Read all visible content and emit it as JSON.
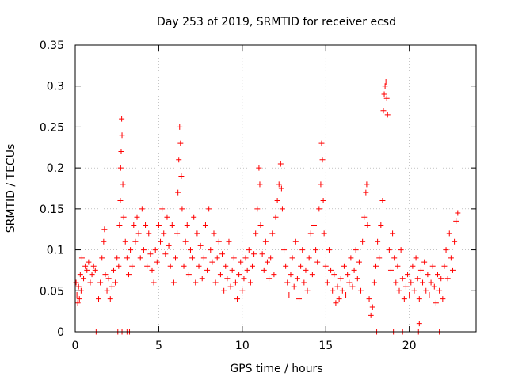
{
  "colors": {
    "series": "#ff0000",
    "grid": "#a0a0a0",
    "axis": "#000000"
  },
  "chart_data": {
    "type": "scatter",
    "title": "Day 253 of 2019, SRMTID for receiver ecsd",
    "xlabel": "GPS time / hours",
    "ylabel": "SRMTID / TECUs",
    "xlim": [
      0,
      24
    ],
    "ylim": [
      0,
      0.35
    ],
    "x_ticks": [
      0,
      5,
      10,
      15,
      20
    ],
    "x_tick_labels": [
      "0",
      "5",
      "10",
      "15",
      "20"
    ],
    "y_ticks": [
      0,
      0.05,
      0.1,
      0.15,
      0.2,
      0.25,
      0.3,
      0.35
    ],
    "y_tick_labels": [
      "0",
      "0.05",
      "0.1",
      "0.15",
      "0.2",
      "0.25",
      "0.3",
      "0.35"
    ],
    "grid": true,
    "marker": "+",
    "series": [
      {
        "name": "SRMTID",
        "points": [
          [
            0.05,
            0.06
          ],
          [
            0.1,
            0.045
          ],
          [
            0.15,
            0.035
          ],
          [
            0.2,
            0.055
          ],
          [
            0.25,
            0.04
          ],
          [
            0.3,
            0.07
          ],
          [
            0.35,
            0.05
          ],
          [
            0.4,
            0.09
          ],
          [
            0.5,
            0.065
          ],
          [
            0.6,
            0.08
          ],
          [
            0.7,
            0.075
          ],
          [
            0.8,
            0.085
          ],
          [
            0.9,
            0.06
          ],
          [
            1.0,
            0.07
          ],
          [
            1.1,
            0.08
          ],
          [
            1.2,
            0.075
          ],
          [
            1.4,
            0.04
          ],
          [
            1.5,
            0.06
          ],
          [
            1.6,
            0.09
          ],
          [
            1.7,
            0.11
          ],
          [
            1.75,
            0.125
          ],
          [
            1.8,
            0.07
          ],
          [
            1.9,
            0.05
          ],
          [
            2.0,
            0.065
          ],
          [
            2.1,
            0.04
          ],
          [
            2.2,
            0.055
          ],
          [
            2.3,
            0.075
          ],
          [
            2.4,
            0.06
          ],
          [
            2.5,
            0.09
          ],
          [
            2.6,
            0.08
          ],
          [
            2.65,
            0.13
          ],
          [
            2.7,
            0.16
          ],
          [
            2.72,
            0.2
          ],
          [
            2.75,
            0.22
          ],
          [
            2.78,
            0.26
          ],
          [
            2.8,
            0.24
          ],
          [
            2.85,
            0.18
          ],
          [
            2.9,
            0.14
          ],
          [
            3.0,
            0.11
          ],
          [
            3.1,
            0.09
          ],
          [
            3.2,
            0.07
          ],
          [
            3.3,
            0.1
          ],
          [
            3.4,
            0.08
          ],
          [
            3.5,
            0.13
          ],
          [
            3.6,
            0.11
          ],
          [
            3.7,
            0.14
          ],
          [
            3.8,
            0.12
          ],
          [
            3.9,
            0.09
          ],
          [
            4.0,
            0.15
          ],
          [
            4.1,
            0.1
          ],
          [
            4.2,
            0.13
          ],
          [
            4.3,
            0.08
          ],
          [
            4.4,
            0.12
          ],
          [
            4.5,
            0.095
          ],
          [
            4.6,
            0.075
          ],
          [
            4.7,
            0.06
          ],
          [
            4.8,
            0.1
          ],
          [
            4.9,
            0.085
          ],
          [
            5.0,
            0.13
          ],
          [
            5.1,
            0.11
          ],
          [
            5.2,
            0.15
          ],
          [
            5.3,
            0.12
          ],
          [
            5.4,
            0.095
          ],
          [
            5.5,
            0.14
          ],
          [
            5.6,
            0.105
          ],
          [
            5.7,
            0.08
          ],
          [
            5.8,
            0.13
          ],
          [
            5.9,
            0.06
          ],
          [
            6.0,
            0.09
          ],
          [
            6.1,
            0.12
          ],
          [
            6.15,
            0.17
          ],
          [
            6.2,
            0.21
          ],
          [
            6.25,
            0.25
          ],
          [
            6.3,
            0.23
          ],
          [
            6.35,
            0.19
          ],
          [
            6.4,
            0.15
          ],
          [
            6.5,
            0.08
          ],
          [
            6.6,
            0.11
          ],
          [
            6.7,
            0.13
          ],
          [
            6.8,
            0.07
          ],
          [
            6.9,
            0.1
          ],
          [
            7.0,
            0.09
          ],
          [
            7.1,
            0.14
          ],
          [
            7.2,
            0.06
          ],
          [
            7.3,
            0.12
          ],
          [
            7.4,
            0.08
          ],
          [
            7.5,
            0.105
          ],
          [
            7.6,
            0.065
          ],
          [
            7.7,
            0.09
          ],
          [
            7.8,
            0.13
          ],
          [
            7.9,
            0.075
          ],
          [
            8.0,
            0.15
          ],
          [
            8.1,
            0.1
          ],
          [
            8.2,
            0.085
          ],
          [
            8.3,
            0.12
          ],
          [
            8.4,
            0.06
          ],
          [
            8.5,
            0.09
          ],
          [
            8.6,
            0.11
          ],
          [
            8.7,
            0.07
          ],
          [
            8.8,
            0.095
          ],
          [
            8.9,
            0.05
          ],
          [
            9.0,
            0.08
          ],
          [
            9.1,
            0.065
          ],
          [
            9.2,
            0.11
          ],
          [
            9.3,
            0.055
          ],
          [
            9.4,
            0.075
          ],
          [
            9.5,
            0.09
          ],
          [
            9.6,
            0.06
          ],
          [
            9.7,
            0.04
          ],
          [
            9.8,
            0.07
          ],
          [
            9.9,
            0.085
          ],
          [
            10.0,
            0.05
          ],
          [
            10.1,
            0.065
          ],
          [
            10.2,
            0.09
          ],
          [
            10.3,
            0.075
          ],
          [
            10.4,
            0.1
          ],
          [
            10.5,
            0.06
          ],
          [
            10.6,
            0.08
          ],
          [
            10.7,
            0.095
          ],
          [
            10.8,
            0.12
          ],
          [
            10.9,
            0.15
          ],
          [
            11.0,
            0.2
          ],
          [
            11.05,
            0.18
          ],
          [
            11.1,
            0.13
          ],
          [
            11.2,
            0.095
          ],
          [
            11.3,
            0.075
          ],
          [
            11.4,
            0.11
          ],
          [
            11.5,
            0.085
          ],
          [
            11.6,
            0.065
          ],
          [
            11.7,
            0.09
          ],
          [
            11.8,
            0.12
          ],
          [
            11.9,
            0.07
          ],
          [
            12.0,
            0.14
          ],
          [
            12.1,
            0.16
          ],
          [
            12.2,
            0.18
          ],
          [
            12.3,
            0.205
          ],
          [
            12.35,
            0.175
          ],
          [
            12.4,
            0.15
          ],
          [
            12.5,
            0.1
          ],
          [
            12.6,
            0.08
          ],
          [
            12.7,
            0.06
          ],
          [
            12.8,
            0.045
          ],
          [
            12.9,
            0.07
          ],
          [
            13.0,
            0.09
          ],
          [
            13.1,
            0.055
          ],
          [
            13.2,
            0.11
          ],
          [
            13.3,
            0.065
          ],
          [
            13.4,
            0.04
          ],
          [
            13.5,
            0.08
          ],
          [
            13.6,
            0.1
          ],
          [
            13.7,
            0.06
          ],
          [
            13.8,
            0.075
          ],
          [
            13.9,
            0.05
          ],
          [
            14.0,
            0.09
          ],
          [
            14.1,
            0.12
          ],
          [
            14.2,
            0.07
          ],
          [
            14.3,
            0.13
          ],
          [
            14.4,
            0.1
          ],
          [
            14.5,
            0.085
          ],
          [
            14.6,
            0.15
          ],
          [
            14.7,
            0.18
          ],
          [
            14.75,
            0.23
          ],
          [
            14.8,
            0.21
          ],
          [
            14.85,
            0.16
          ],
          [
            14.9,
            0.12
          ],
          [
            15.0,
            0.08
          ],
          [
            15.1,
            0.06
          ],
          [
            15.2,
            0.1
          ],
          [
            15.3,
            0.075
          ],
          [
            15.4,
            0.05
          ],
          [
            15.5,
            0.07
          ],
          [
            15.6,
            0.035
          ],
          [
            15.7,
            0.055
          ],
          [
            15.8,
            0.04
          ],
          [
            15.9,
            0.065
          ],
          [
            16.0,
            0.05
          ],
          [
            16.1,
            0.08
          ],
          [
            16.2,
            0.045
          ],
          [
            16.3,
            0.07
          ],
          [
            16.4,
            0.06
          ],
          [
            16.5,
            0.09
          ],
          [
            16.6,
            0.055
          ],
          [
            16.7,
            0.075
          ],
          [
            16.8,
            0.1
          ],
          [
            16.9,
            0.065
          ],
          [
            17.0,
            0.085
          ],
          [
            17.1,
            0.05
          ],
          [
            17.2,
            0.11
          ],
          [
            17.3,
            0.14
          ],
          [
            17.4,
            0.17
          ],
          [
            17.45,
            0.18
          ],
          [
            17.5,
            0.13
          ],
          [
            17.6,
            0.04
          ],
          [
            17.7,
            0.02
          ],
          [
            17.8,
            0.03
          ],
          [
            17.9,
            0.06
          ],
          [
            18.0,
            0.08
          ],
          [
            18.1,
            0.11
          ],
          [
            18.2,
            0.09
          ],
          [
            18.3,
            0.13
          ],
          [
            18.4,
            0.16
          ],
          [
            18.45,
            0.27
          ],
          [
            18.5,
            0.29
          ],
          [
            18.55,
            0.3
          ],
          [
            18.6,
            0.305
          ],
          [
            18.65,
            0.285
          ],
          [
            18.7,
            0.265
          ],
          [
            18.8,
            0.1
          ],
          [
            18.9,
            0.075
          ],
          [
            19.0,
            0.12
          ],
          [
            19.1,
            0.09
          ],
          [
            19.2,
            0.06
          ],
          [
            19.3,
            0.08
          ],
          [
            19.4,
            0.05
          ],
          [
            19.5,
            0.1
          ],
          [
            19.6,
            0.065
          ],
          [
            19.7,
            0.04
          ],
          [
            19.8,
            0.055
          ],
          [
            19.9,
            0.07
          ],
          [
            20.0,
            0.045
          ],
          [
            20.1,
            0.06
          ],
          [
            20.2,
            0.08
          ],
          [
            20.3,
            0.05
          ],
          [
            20.4,
            0.09
          ],
          [
            20.5,
            0.065
          ],
          [
            20.6,
            0.04
          ],
          [
            20.7,
            0.075
          ],
          [
            20.8,
            0.06
          ],
          [
            20.9,
            0.085
          ],
          [
            21.0,
            0.05
          ],
          [
            21.1,
            0.07
          ],
          [
            21.2,
            0.045
          ],
          [
            21.3,
            0.06
          ],
          [
            21.4,
            0.08
          ],
          [
            21.5,
            0.055
          ],
          [
            21.6,
            0.035
          ],
          [
            21.7,
            0.07
          ],
          [
            21.8,
            0.05
          ],
          [
            21.9,
            0.065
          ],
          [
            22.0,
            0.04
          ],
          [
            22.1,
            0.08
          ],
          [
            22.2,
            0.1
          ],
          [
            22.3,
            0.065
          ],
          [
            22.4,
            0.12
          ],
          [
            22.5,
            0.09
          ],
          [
            22.6,
            0.075
          ],
          [
            22.7,
            0.11
          ],
          [
            22.8,
            0.135
          ],
          [
            22.9,
            0.145
          ],
          [
            1.25,
            0.0
          ],
          [
            2.55,
            0.0
          ],
          [
            2.8,
            0.0
          ],
          [
            3.1,
            0.0
          ],
          [
            3.25,
            0.0
          ],
          [
            18.05,
            0.0
          ],
          [
            19.05,
            0.0
          ],
          [
            19.6,
            0.0
          ],
          [
            20.55,
            0.0
          ],
          [
            21.8,
            0.0
          ],
          [
            20.6,
            0.01
          ]
        ]
      }
    ]
  }
}
